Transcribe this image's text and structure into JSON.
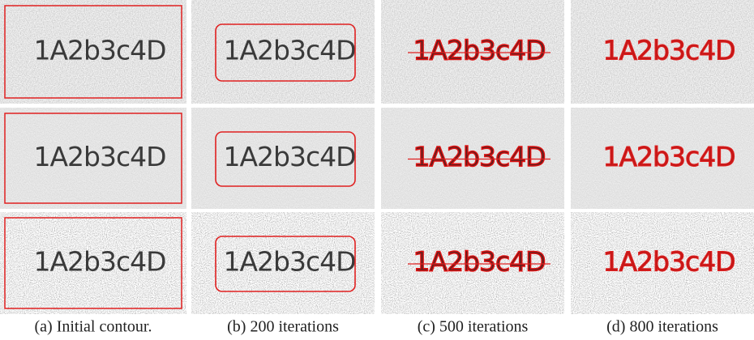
{
  "panels": [
    {
      "caption": "(a) Initial contour.",
      "cells": [
        {
          "text": "1A2b3c4D"
        },
        {
          "text": "1A2b3c4D"
        },
        {
          "text": "1A2b3c4D"
        }
      ]
    },
    {
      "caption": "(b) 200 iterations",
      "cells": [
        {
          "text": "1A2b3c4D"
        },
        {
          "text": "1A2b3c4D"
        },
        {
          "text": "1A2b3c4D"
        }
      ]
    },
    {
      "caption": "(c) 500 iterations",
      "cells": [
        {
          "text": "1A2b3c4D"
        },
        {
          "text": "1A2b3c4D"
        },
        {
          "text": "1A2b3c4D"
        }
      ]
    },
    {
      "caption": "(d) 800 iterations",
      "cells": [
        {
          "text": "1A2b3c4D"
        },
        {
          "text": "1A2b3c4D"
        },
        {
          "text": "1A2b3c4D"
        }
      ]
    }
  ]
}
